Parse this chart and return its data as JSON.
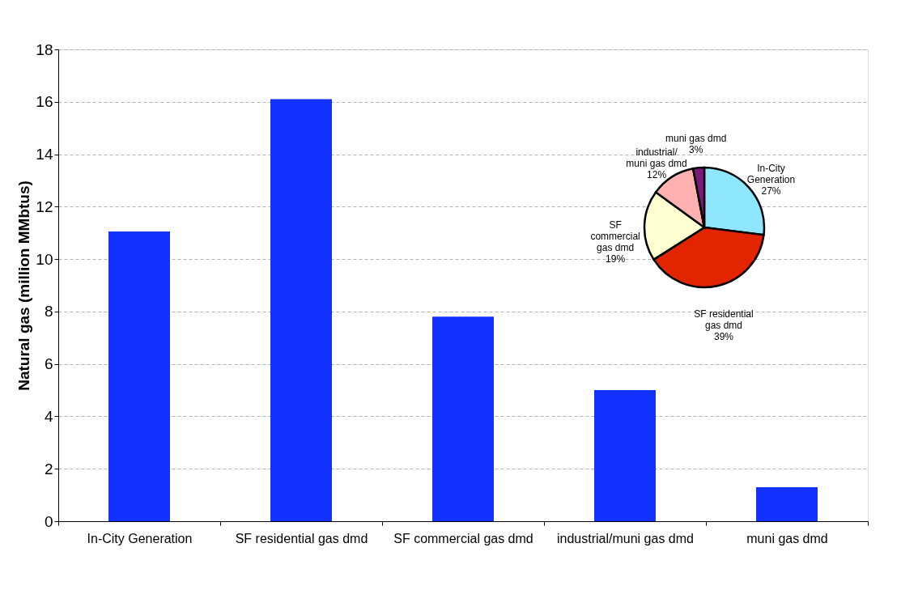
{
  "chart_data": [
    {
      "type": "bar",
      "ylabel": "Natural gas (million MMbtus)",
      "categories": [
        "In-City Generation",
        "SF residential gas dmd",
        "SF commercial gas dmd",
        "industrial/muni gas dmd",
        "muni gas dmd"
      ],
      "values": [
        11.05,
        16.1,
        7.8,
        5.0,
        1.3
      ],
      "color": "#1432ff",
      "ylim": [
        0,
        18
      ],
      "yticks": [
        0,
        2,
        4,
        6,
        8,
        10,
        12,
        14,
        16,
        18
      ],
      "grid": "y"
    },
    {
      "type": "pie",
      "categories": [
        "In-City\nGeneration",
        "SF residential\ngas dmd",
        "SF\ncommercial\ngas dmd",
        "industrial/\nmuni gas dmd",
        "muni gas dmd"
      ],
      "values": [
        27,
        39,
        19,
        12,
        3
      ],
      "value_labels": [
        "27%",
        "39%",
        "19%",
        "12%",
        "3%"
      ],
      "colors": [
        "#8fe6ff",
        "#e32400",
        "#ffffd2",
        "#ffb0b0",
        "#7a1a7a"
      ]
    }
  ]
}
